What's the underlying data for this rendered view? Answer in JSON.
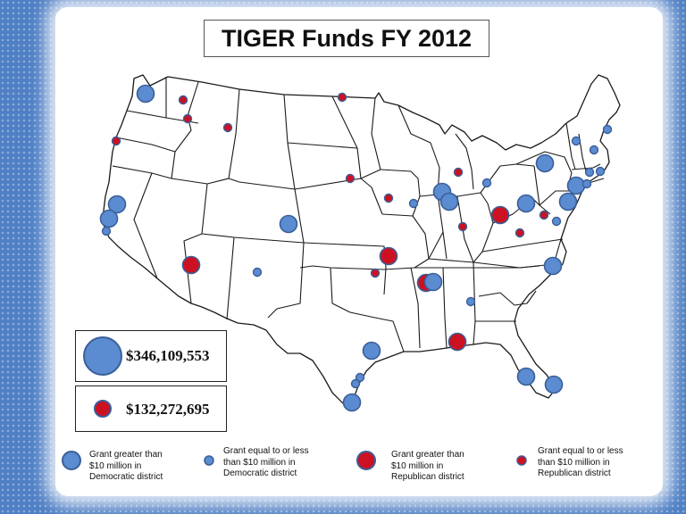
{
  "title": "TIGER Funds FY 2012",
  "colors": {
    "democratic": "#5b8bd0",
    "democratic_stroke": "#3a5f99",
    "republican": "#cc1122",
    "republican_stroke": "#3a5f99",
    "background": "#4f7fc4"
  },
  "scale_key": [
    {
      "amount": "$346,109,553",
      "category": "democratic"
    },
    {
      "amount": "$132,272,695",
      "category": "republican"
    }
  ],
  "legend": [
    {
      "label": "Grant greater than\n$10 million in\nDemocratic district",
      "category": "democratic",
      "size": "large"
    },
    {
      "label": "Grant equal to or less\nthan $10 million in\nDemocratic district",
      "category": "democratic",
      "size": "small"
    },
    {
      "label": "Grant greater than\n$10 million  in\nRepublican district",
      "category": "republican",
      "size": "large"
    },
    {
      "label": "Grant equal to or less\nthan $10 million  in\nRepublican district",
      "category": "republican",
      "size": "small"
    }
  ],
  "grants": [
    {
      "region": "WA Seattle",
      "category": "democratic",
      "size": "large"
    },
    {
      "region": "WA Yakima",
      "category": "republican",
      "size": "small"
    },
    {
      "region": "WA Spokane",
      "category": "republican",
      "size": "small"
    },
    {
      "region": "OR",
      "category": "republican",
      "size": "small"
    },
    {
      "region": "ID",
      "category": "republican",
      "size": "small"
    },
    {
      "region": "ND",
      "category": "republican",
      "size": "small"
    },
    {
      "region": "CA Bay Area",
      "category": "democratic",
      "size": "large"
    },
    {
      "region": "CA Oakland",
      "category": "democratic",
      "size": "large"
    },
    {
      "region": "CA San Jose",
      "category": "democratic",
      "size": "small"
    },
    {
      "region": "CO",
      "category": "democratic",
      "size": "large"
    },
    {
      "region": "AZ",
      "category": "republican",
      "size": "large"
    },
    {
      "region": "NM",
      "category": "democratic",
      "size": "small"
    },
    {
      "region": "NE",
      "category": "republican",
      "size": "small"
    },
    {
      "region": "IA",
      "category": "republican",
      "size": "small"
    },
    {
      "region": "IL Moline",
      "category": "democratic",
      "size": "small"
    },
    {
      "region": "IL Chicago",
      "category": "democratic",
      "size": "large"
    },
    {
      "region": "IL Chicago 2",
      "category": "democratic",
      "size": "large"
    },
    {
      "region": "IN North",
      "category": "republican",
      "size": "small"
    },
    {
      "region": "IN South",
      "category": "republican",
      "size": "small"
    },
    {
      "region": "MI",
      "category": "democratic",
      "size": "small"
    },
    {
      "region": "OH",
      "category": "republican",
      "size": "large"
    },
    {
      "region": "PA",
      "category": "democratic",
      "size": "large"
    },
    {
      "region": "WV",
      "category": "republican",
      "size": "small"
    },
    {
      "region": "MD",
      "category": "republican",
      "size": "small"
    },
    {
      "region": "VA",
      "category": "democratic",
      "size": "small"
    },
    {
      "region": "NJ",
      "category": "democratic",
      "size": "large"
    },
    {
      "region": "NY City",
      "category": "democratic",
      "size": "large"
    },
    {
      "region": "NY Upstate",
      "category": "democratic",
      "size": "large"
    },
    {
      "region": "VT",
      "category": "democratic",
      "size": "small"
    },
    {
      "region": "NH",
      "category": "democratic",
      "size": "small"
    },
    {
      "region": "ME",
      "category": "democratic",
      "size": "small"
    },
    {
      "region": "MA",
      "category": "democratic",
      "size": "small"
    },
    {
      "region": "CT",
      "category": "democratic",
      "size": "small"
    },
    {
      "region": "RI",
      "category": "democratic",
      "size": "small"
    },
    {
      "region": "NC",
      "category": "democratic",
      "size": "large"
    },
    {
      "region": "MO",
      "category": "republican",
      "size": "large"
    },
    {
      "region": "OK",
      "category": "republican",
      "size": "small"
    },
    {
      "region": "AR/TN Memphis",
      "category": "republican",
      "size": "large"
    },
    {
      "region": "TN Memphis",
      "category": "democratic",
      "size": "large"
    },
    {
      "region": "AL",
      "category": "democratic",
      "size": "small"
    },
    {
      "region": "AL Mobile",
      "category": "republican",
      "size": "large"
    },
    {
      "region": "TX Dallas",
      "category": "democratic",
      "size": "large"
    },
    {
      "region": "TX Houston",
      "category": "democratic",
      "size": "small"
    },
    {
      "region": "TX Gulf",
      "category": "democratic",
      "size": "small"
    },
    {
      "region": "TX Brownsville",
      "category": "democratic",
      "size": "large"
    },
    {
      "region": "FL Tampa",
      "category": "democratic",
      "size": "large"
    },
    {
      "region": "FL Miami",
      "category": "democratic",
      "size": "large"
    }
  ]
}
